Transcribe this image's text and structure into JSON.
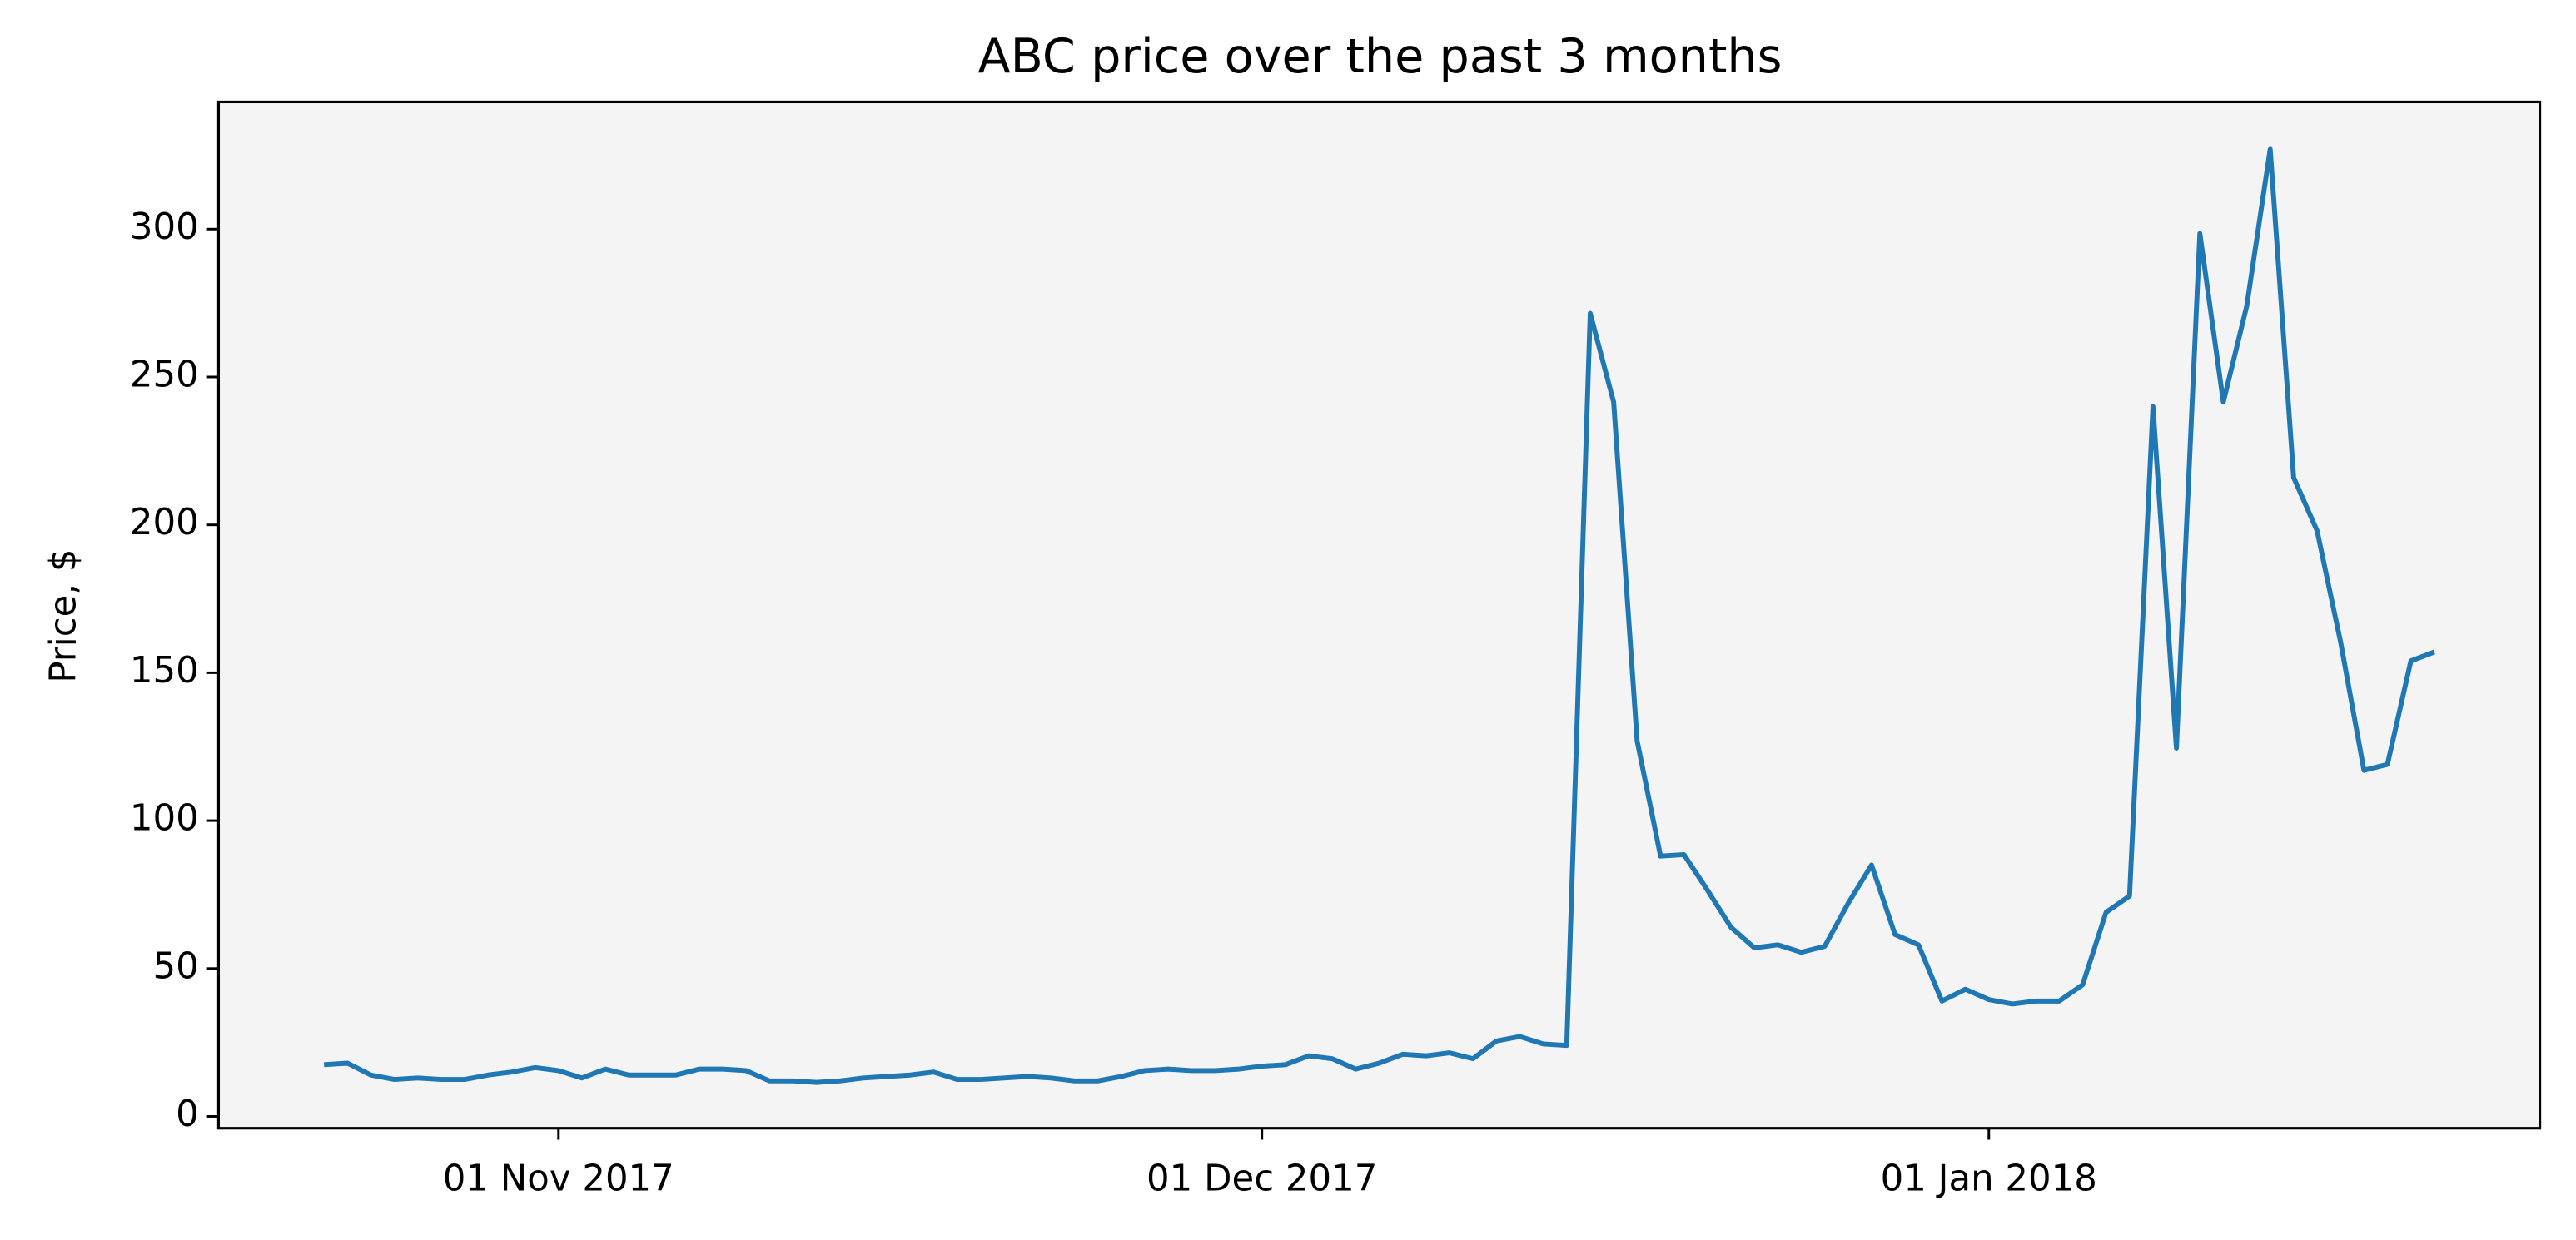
{
  "chart_data": {
    "type": "line",
    "title": "ABC price over the past 3 months",
    "ylabel": "Price, $",
    "x": [
      "2017-10-22",
      "2017-10-23",
      "2017-10-24",
      "2017-10-25",
      "2017-10-26",
      "2017-10-27",
      "2017-10-28",
      "2017-10-29",
      "2017-10-30",
      "2017-10-31",
      "2017-11-01",
      "2017-11-02",
      "2017-11-03",
      "2017-11-04",
      "2017-11-05",
      "2017-11-06",
      "2017-11-07",
      "2017-11-08",
      "2017-11-09",
      "2017-11-10",
      "2017-11-11",
      "2017-11-12",
      "2017-11-13",
      "2017-11-14",
      "2017-11-15",
      "2017-11-16",
      "2017-11-17",
      "2017-11-18",
      "2017-11-19",
      "2017-11-20",
      "2017-11-21",
      "2017-11-22",
      "2017-11-23",
      "2017-11-24",
      "2017-11-25",
      "2017-11-26",
      "2017-11-27",
      "2017-11-28",
      "2017-11-29",
      "2017-11-30",
      "2017-12-01",
      "2017-12-02",
      "2017-12-03",
      "2017-12-04",
      "2017-12-05",
      "2017-12-06",
      "2017-12-07",
      "2017-12-08",
      "2017-12-09",
      "2017-12-10",
      "2017-12-11",
      "2017-12-12",
      "2017-12-13",
      "2017-12-14",
      "2017-12-15",
      "2017-12-16",
      "2017-12-17",
      "2017-12-18",
      "2017-12-19",
      "2017-12-20",
      "2017-12-21",
      "2017-12-22",
      "2017-12-23",
      "2017-12-24",
      "2017-12-25",
      "2017-12-26",
      "2017-12-27",
      "2017-12-28",
      "2017-12-29",
      "2017-12-30",
      "2017-12-31",
      "2018-01-01",
      "2018-01-02",
      "2018-01-03",
      "2018-01-04",
      "2018-01-05",
      "2018-01-06",
      "2018-01-07",
      "2018-01-08",
      "2018-01-09",
      "2018-01-10",
      "2018-01-11",
      "2018-01-12",
      "2018-01-13",
      "2018-01-14",
      "2018-01-15",
      "2018-01-16",
      "2018-01-17",
      "2018-01-18",
      "2018-01-19",
      "2018-01-20"
    ],
    "values": [
      17.5,
      18,
      14,
      12.5,
      13,
      12.5,
      12.5,
      14,
      15,
      16.5,
      15.5,
      13,
      16,
      14,
      14,
      14,
      16,
      16,
      15.5,
      12,
      12,
      11.5,
      12,
      13,
      13.5,
      14,
      15,
      12.5,
      12.5,
      13,
      13.5,
      13,
      12,
      12,
      13.5,
      15.5,
      16,
      15.5,
      15.5,
      16,
      17,
      17.5,
      20.5,
      19.5,
      16,
      18,
      21,
      20.5,
      21.5,
      19.5,
      25.5,
      27,
      24.5,
      24,
      271.5,
      241.5,
      127,
      88,
      88.5,
      76.5,
      64,
      57,
      58,
      55.5,
      57.5,
      72,
      85,
      61.5,
      58,
      39,
      43,
      39.5,
      38,
      39,
      39,
      44.5,
      69,
      74.5,
      240,
      124.5,
      298.5,
      241.5,
      274,
      327,
      216,
      198,
      160.5,
      117,
      119,
      154,
      157
    ],
    "color": "#1f77b4",
    "background": "#f4f4f4",
    "xlim": [
      "2017-10-17T12:00",
      "2018-01-24T12:00"
    ],
    "xticks": [
      {
        "value": "2017-11-01",
        "label": "01 Nov 2017"
      },
      {
        "value": "2017-12-01",
        "label": "01 Dec 2017"
      },
      {
        "value": "2018-01-01",
        "label": "01 Jan 2018"
      }
    ],
    "ylim": [
      -4,
      343
    ],
    "yticks": [
      0,
      50,
      100,
      150,
      200,
      250,
      300
    ],
    "grid": false
  }
}
